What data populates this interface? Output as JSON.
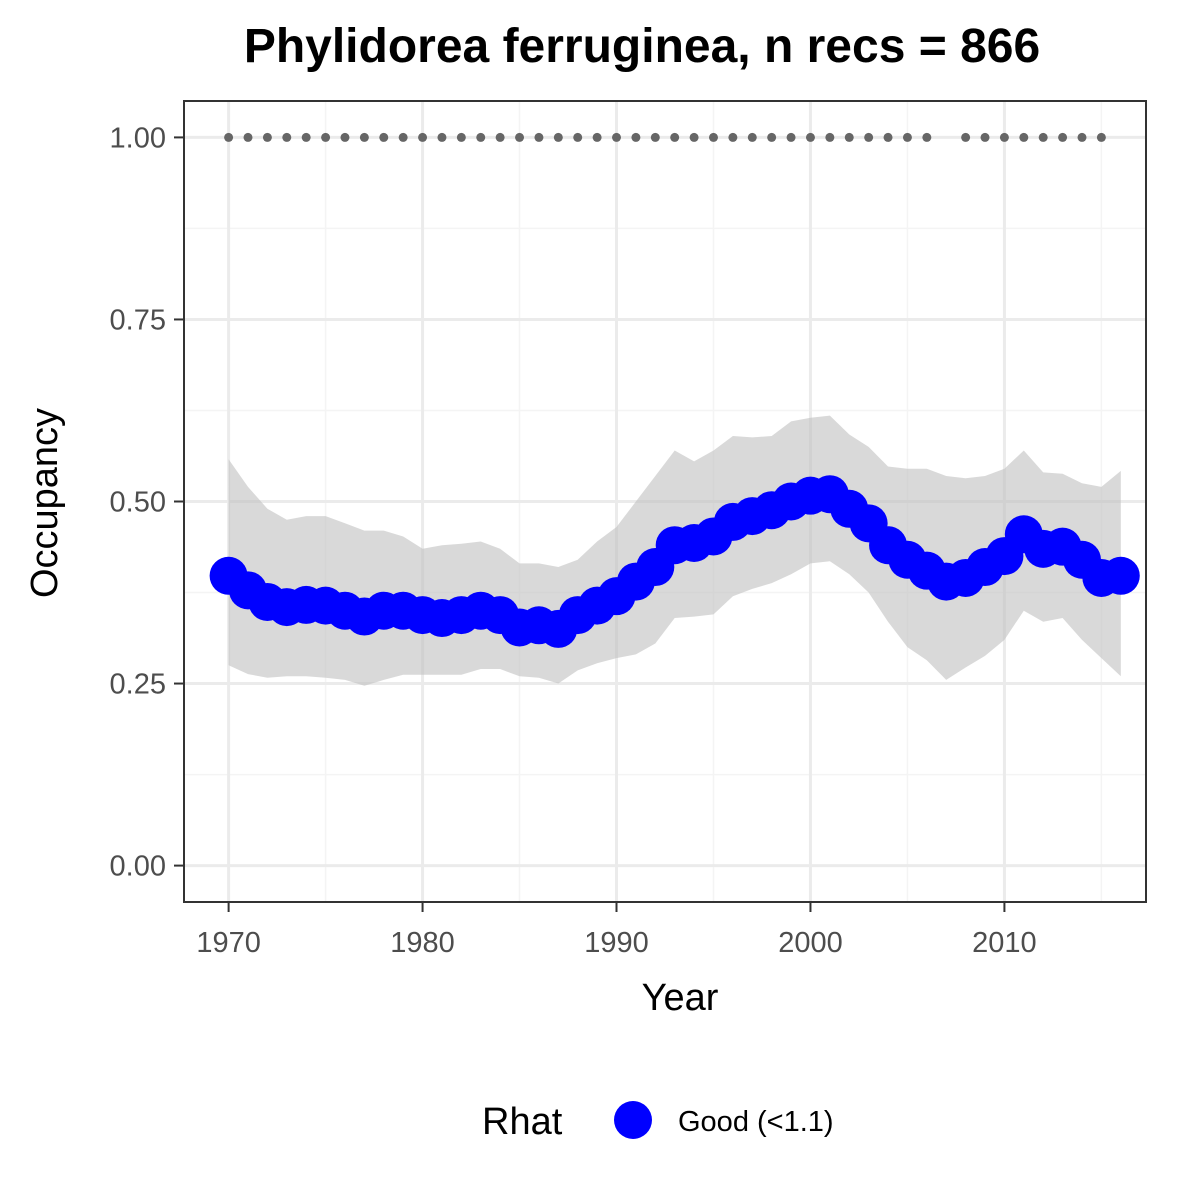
{
  "chart_data": {
    "type": "line",
    "title": "Phylidorea ferruginea, n recs = 866",
    "xlabel": "Year",
    "ylabel": "Occupancy",
    "xlim": [
      1967.7,
      2017.3
    ],
    "ylim": [
      -0.05,
      1.05
    ],
    "x_ticks": [
      1970,
      1980,
      1990,
      2000,
      2010
    ],
    "x_tick_labels": [
      "1970",
      "1980",
      "1990",
      "2000",
      "2010"
    ],
    "y_ticks": [
      0,
      0.25,
      0.5,
      0.75,
      1.0
    ],
    "y_tick_labels": [
      "0.00",
      "0.25",
      "0.50",
      "0.75",
      "1.00"
    ],
    "grid": true,
    "legend": {
      "position": "bottom",
      "title": "Rhat",
      "entries": [
        {
          "label": "Good (<1.1)",
          "color": "#0000ff"
        }
      ]
    },
    "colors": {
      "series": "#0000ff",
      "ribbon": "#bfbfbf",
      "record_dots": "#666666",
      "grid": "#ebebeb",
      "panel_border": "#333333"
    },
    "series": [
      {
        "x": [
          1970,
          1971,
          1972,
          1973,
          1974,
          1975,
          1976,
          1977,
          1978,
          1979,
          1980,
          1981,
          1982,
          1983,
          1984,
          1985,
          1986,
          1987,
          1988,
          1989,
          1990,
          1991,
          1992,
          1993,
          1994,
          1995,
          1996,
          1997,
          1998,
          1999,
          2000,
          2001,
          2002,
          2003,
          2004,
          2005,
          2006,
          2007,
          2008,
          2009,
          2010,
          2011,
          2012,
          2013,
          2014,
          2015,
          2016
        ],
        "values": [
          0.398,
          0.378,
          0.362,
          0.355,
          0.358,
          0.357,
          0.35,
          0.342,
          0.35,
          0.35,
          0.344,
          0.34,
          0.344,
          0.35,
          0.344,
          0.327,
          0.33,
          0.325,
          0.344,
          0.357,
          0.37,
          0.39,
          0.41,
          0.44,
          0.443,
          0.452,
          0.472,
          0.48,
          0.488,
          0.5,
          0.508,
          0.51,
          0.49,
          0.47,
          0.44,
          0.42,
          0.405,
          0.39,
          0.395,
          0.41,
          0.425,
          0.455,
          0.435,
          0.438,
          0.42,
          0.395,
          0.398
        ],
        "lower": [
          0.275,
          0.263,
          0.258,
          0.26,
          0.26,
          0.258,
          0.255,
          0.247,
          0.255,
          0.262,
          0.262,
          0.262,
          0.262,
          0.27,
          0.27,
          0.26,
          0.258,
          0.25,
          0.268,
          0.278,
          0.285,
          0.29,
          0.305,
          0.34,
          0.342,
          0.345,
          0.37,
          0.38,
          0.388,
          0.4,
          0.415,
          0.418,
          0.4,
          0.375,
          0.335,
          0.3,
          0.282,
          0.255,
          0.272,
          0.288,
          0.31,
          0.35,
          0.335,
          0.34,
          0.31,
          0.285,
          0.26
        ],
        "upper": [
          0.558,
          0.52,
          0.49,
          0.475,
          0.48,
          0.48,
          0.47,
          0.46,
          0.46,
          0.452,
          0.435,
          0.44,
          0.442,
          0.445,
          0.435,
          0.415,
          0.415,
          0.41,
          0.42,
          0.445,
          0.465,
          0.5,
          0.535,
          0.57,
          0.555,
          0.57,
          0.59,
          0.588,
          0.59,
          0.61,
          0.615,
          0.618,
          0.592,
          0.575,
          0.548,
          0.545,
          0.545,
          0.535,
          0.532,
          0.535,
          0.545,
          0.57,
          0.54,
          0.538,
          0.525,
          0.52,
          0.542
        ]
      }
    ],
    "record_years": [
      1970,
      1971,
      1972,
      1973,
      1974,
      1975,
      1976,
      1977,
      1978,
      1979,
      1980,
      1981,
      1982,
      1983,
      1984,
      1985,
      1986,
      1987,
      1988,
      1989,
      1990,
      1991,
      1992,
      1993,
      1994,
      1995,
      1996,
      1997,
      1998,
      1999,
      2000,
      2001,
      2002,
      2003,
      2004,
      2005,
      2006,
      2008,
      2009,
      2010,
      2011,
      2012,
      2013,
      2014,
      2015
    ],
    "record_value": 1.0
  }
}
